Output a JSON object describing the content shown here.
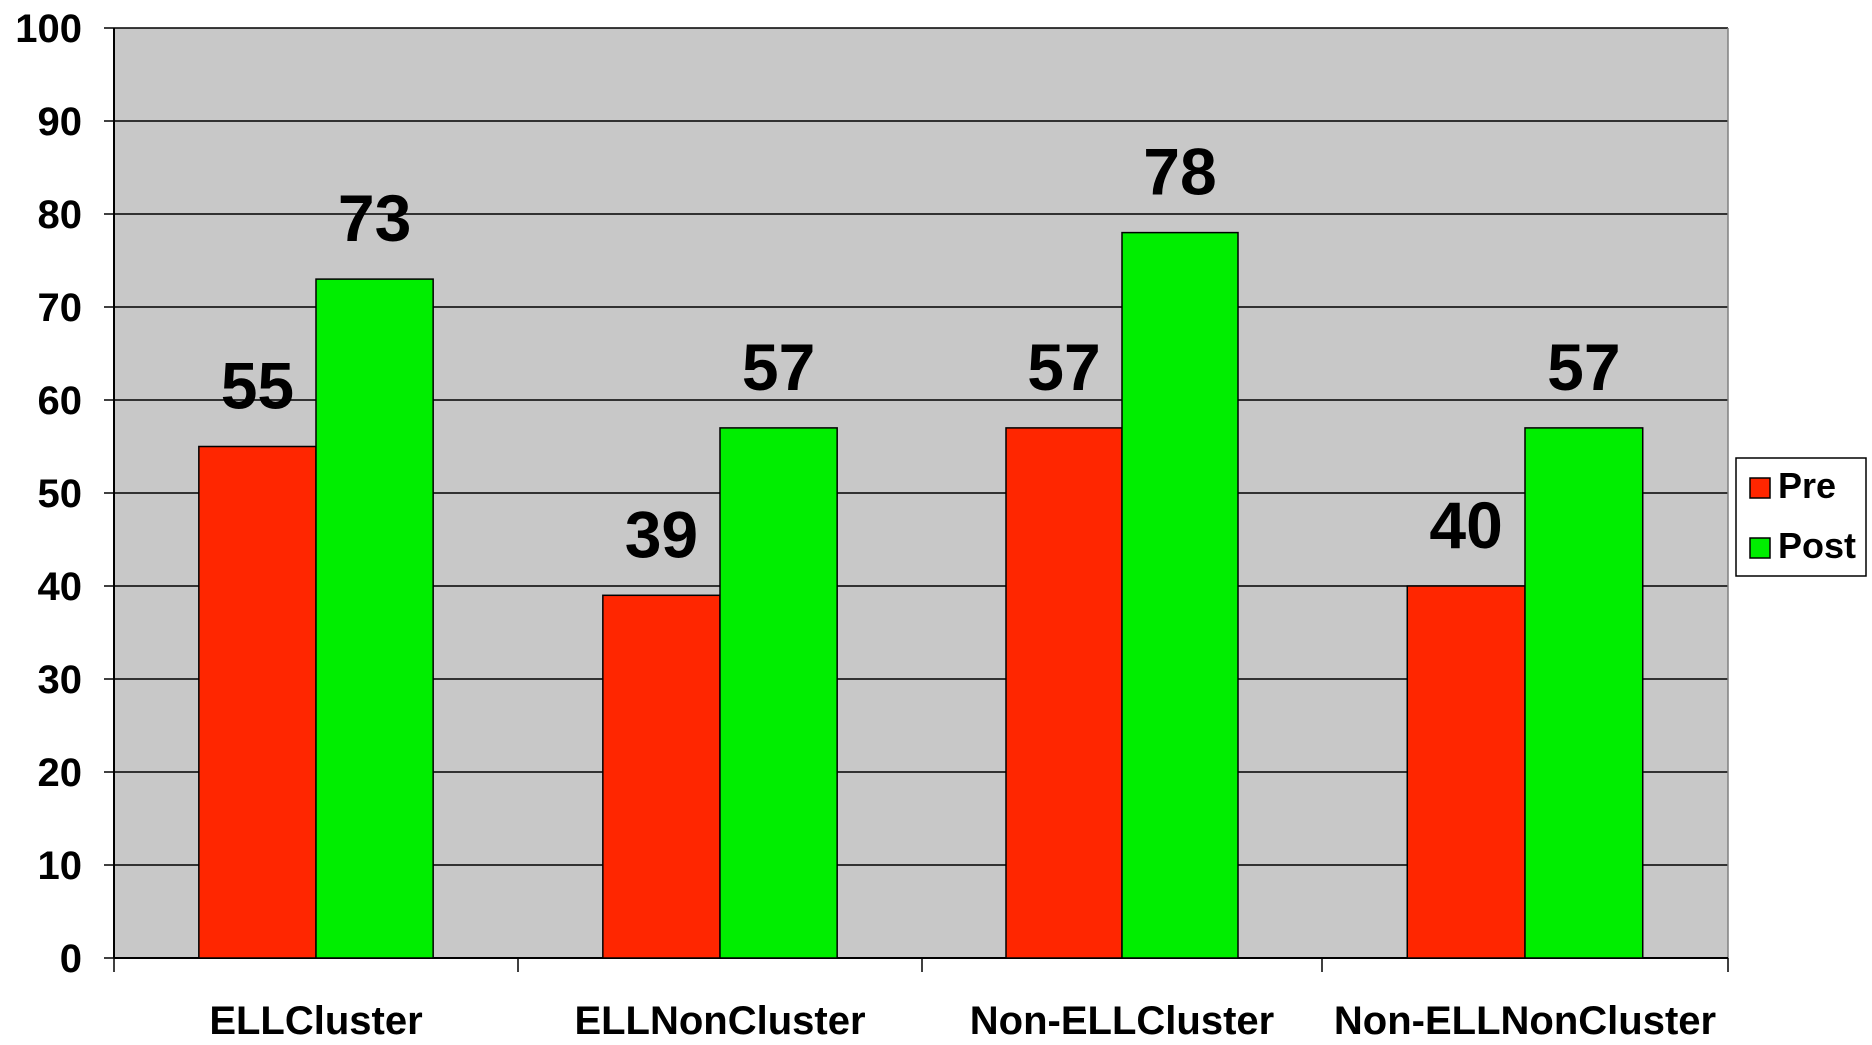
{
  "chart_data": {
    "type": "bar",
    "categories": [
      "ELLCluster",
      "ELLNonCluster",
      "Non-ELLCluster",
      "Non-ELLNonCluster"
    ],
    "series": [
      {
        "name": "Pre",
        "values": [
          55,
          39,
          57,
          40
        ],
        "labels": [
          "55",
          "39",
          "57",
          "40"
        ],
        "color": "#ff2600"
      },
      {
        "name": "Post",
        "values": [
          73,
          57,
          78,
          57
        ],
        "labels": [
          "73",
          "57",
          "78",
          "57"
        ],
        "color": "#00ee00"
      }
    ],
    "ylim": [
      0,
      100
    ],
    "yticks": [
      "0",
      "10",
      "20",
      "30",
      "40",
      "50",
      "60",
      "70",
      "80",
      "90",
      "100"
    ],
    "grid": true,
    "legend_position": "right",
    "plot_background": "#c8c8c8"
  }
}
